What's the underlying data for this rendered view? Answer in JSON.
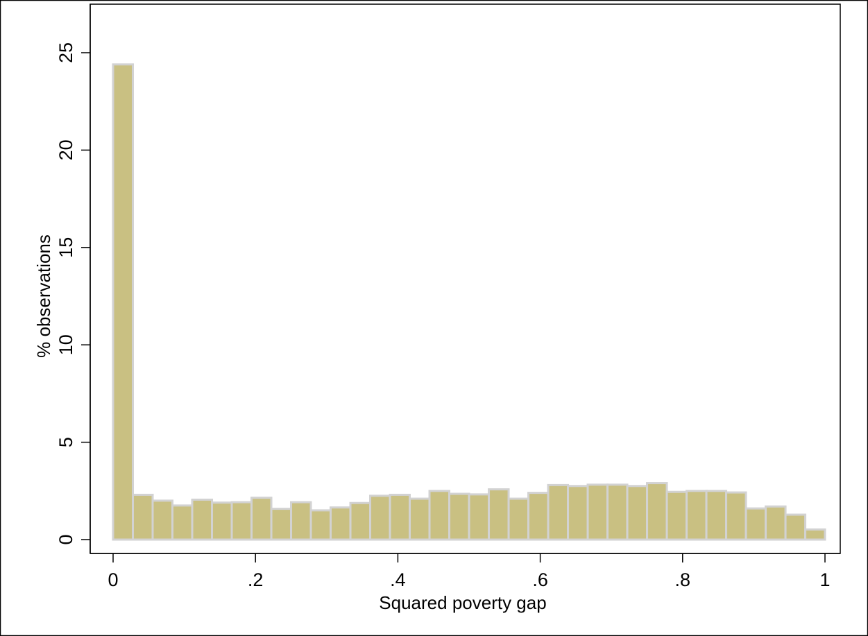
{
  "chart_data": {
    "type": "bar",
    "subtype": "histogram",
    "xlabel": "Squared poverty gap",
    "ylabel": "% observations",
    "xlim": [
      0,
      1
    ],
    "ylim": [
      0,
      25
    ],
    "x_ticks": [
      {
        "value": 0,
        "label": "0"
      },
      {
        "value": 0.2,
        "label": ".2"
      },
      {
        "value": 0.4,
        "label": ".4"
      },
      {
        "value": 0.6,
        "label": ".6"
      },
      {
        "value": 0.8,
        "label": ".8"
      },
      {
        "value": 1,
        "label": "1"
      }
    ],
    "y_ticks": [
      {
        "value": 0,
        "label": "0"
      },
      {
        "value": 5,
        "label": "5"
      },
      {
        "value": 10,
        "label": "10"
      },
      {
        "value": 15,
        "label": "15"
      },
      {
        "value": 20,
        "label": "20"
      },
      {
        "value": 25,
        "label": "25"
      }
    ],
    "bin_width": 0.02778,
    "bin_start": 0,
    "values": [
      24.4,
      2.3,
      2.0,
      1.75,
      2.05,
      1.9,
      1.92,
      2.15,
      1.58,
      1.92,
      1.5,
      1.65,
      1.88,
      2.25,
      2.3,
      2.1,
      2.5,
      2.35,
      2.32,
      2.58,
      2.1,
      2.4,
      2.8,
      2.75,
      2.82,
      2.82,
      2.75,
      2.9,
      2.45,
      2.5,
      2.5,
      2.42,
      1.6,
      1.7,
      1.28,
      0.52
    ],
    "grid": false,
    "colors": {
      "bar_fill": "#c9c082",
      "bar_stroke": "#d2d2d2",
      "axis": "#000000",
      "background": "#ffffff"
    }
  }
}
